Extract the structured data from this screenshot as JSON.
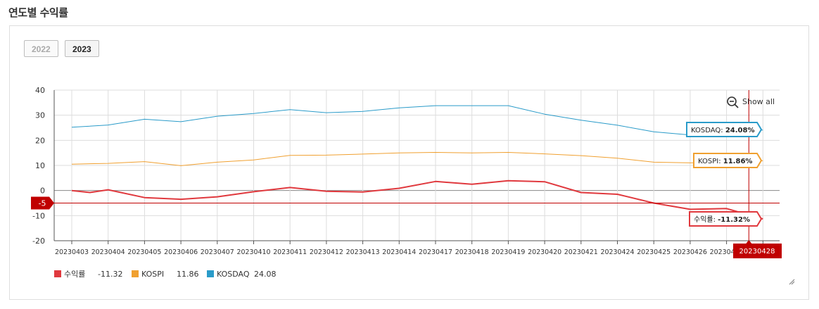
{
  "page": {
    "title": "연도별 수익률"
  },
  "year_buttons": [
    {
      "label": "2022",
      "active": false
    },
    {
      "label": "2023",
      "active": true
    }
  ],
  "zoom": {
    "label": "Show all",
    "icon": "zoom-out-icon"
  },
  "crosshair": {
    "x_label": "20230428",
    "y_label": "-5"
  },
  "colors": {
    "returns": "#e0393e",
    "kospi": "#f0a030",
    "kosdaq": "#2a9bc9",
    "crosshair": "#c00000"
  },
  "legend": [
    {
      "name": "수익률",
      "value": "-11.32",
      "color": "#e0393e"
    },
    {
      "name": "KOSPI",
      "value": "11.86",
      "color": "#f0a030"
    },
    {
      "name": "KOSDAQ",
      "value": "24.08",
      "color": "#2a9bc9"
    }
  ],
  "tooltips": [
    {
      "series": "KOSDAQ",
      "text_prefix": "KOSDAQ: ",
      "text_value": "24.08%"
    },
    {
      "series": "KOSPI",
      "text_prefix": "KOSPI: ",
      "text_value": "11.86%"
    },
    {
      "series": "수익률",
      "text_prefix": "수익률: ",
      "text_value": "-11.32%"
    }
  ],
  "chart_data": {
    "type": "line",
    "categories": [
      "20230403",
      "20230404",
      "20230405",
      "20230406",
      "20230407",
      "20230410",
      "20230411",
      "20230412",
      "20230413",
      "20230414",
      "20230417",
      "20230418",
      "20230419",
      "20230420",
      "20230421",
      "20230424",
      "20230425",
      "20230426",
      "20230427",
      "20230428"
    ],
    "ylim": [
      -20,
      40
    ],
    "yticks": [
      -20,
      -10,
      0,
      10,
      20,
      30,
      40
    ],
    "grid": true,
    "series": [
      {
        "name": "수익률",
        "x": [
          0,
          0.5,
          1,
          2,
          3,
          4,
          5,
          6,
          7,
          8,
          9,
          10,
          11,
          12,
          13,
          14,
          15,
          16,
          17,
          18,
          19
        ],
        "values": [
          0,
          -0.8,
          0.3,
          -2.8,
          -3.5,
          -2.5,
          -0.5,
          1.2,
          -0.3,
          -0.6,
          0.9,
          3.6,
          2.5,
          3.9,
          3.5,
          -0.8,
          -1.5,
          -5,
          -7.5,
          -7.2,
          -11.32
        ]
      },
      {
        "name": "KOSPI",
        "x": [
          0,
          1,
          2,
          3,
          4,
          5,
          6,
          7,
          8,
          9,
          10,
          11,
          12,
          13,
          14,
          15,
          16,
          17,
          18,
          19
        ],
        "values": [
          10.5,
          10.8,
          11.5,
          9.9,
          11.3,
          12.2,
          14.0,
          14.1,
          14.5,
          15.0,
          15.2,
          15.0,
          15.2,
          14.6,
          13.9,
          12.9,
          11.3,
          11.0,
          11.2,
          11.86
        ]
      },
      {
        "name": "KOSDAQ",
        "x": [
          0,
          1,
          2,
          3,
          4,
          5,
          6,
          7,
          8,
          9,
          10,
          11,
          12,
          13,
          14,
          15,
          16,
          17,
          18,
          19
        ],
        "values": [
          25.2,
          26.1,
          28.4,
          27.4,
          29.6,
          30.7,
          32.2,
          31.0,
          31.5,
          32.9,
          33.8,
          33.8,
          33.8,
          30.4,
          28.0,
          26.0,
          23.4,
          22.1,
          22.9,
          24.08
        ]
      }
    ]
  }
}
